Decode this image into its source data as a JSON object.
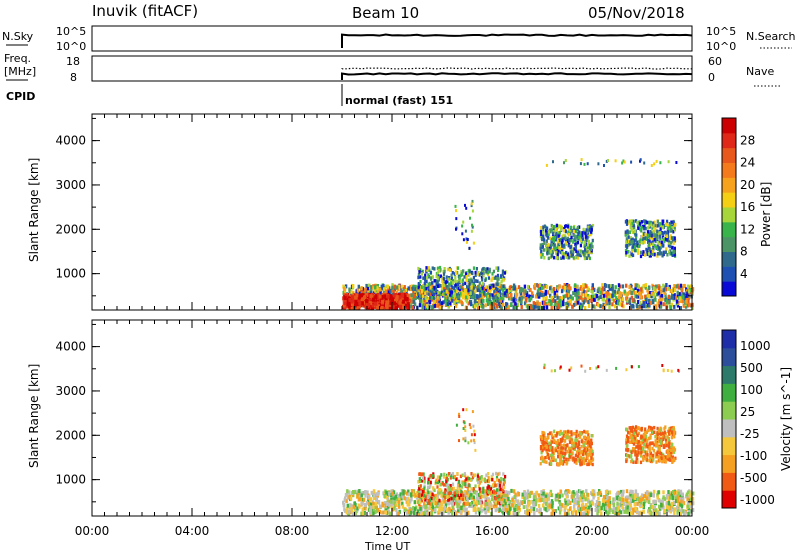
{
  "header": {
    "station": "Inuvik (fitACF)",
    "beam": "Beam 10",
    "date": "05/Nov/2018"
  },
  "aux_panels": {
    "nsky_label": "N.Sky",
    "nsearch_label": "N.Search",
    "nsky_ticks": [
      "10^5",
      "10^0"
    ],
    "freq_label_top": "Freq.",
    "freq_label_unit": "[MHz]",
    "freq_ticks": [
      "18",
      "8"
    ],
    "nave_ticks": [
      "60",
      "0"
    ],
    "nave_label": "Nave",
    "cpid_label": "CPID",
    "cpid_value": "normal (fast) 151",
    "start_time_hours": 10
  },
  "colors": {
    "power": [
      "#0a0ad6",
      "#1e50b4",
      "#2f6a8c",
      "#4a9466",
      "#39b44a",
      "#a6d63a",
      "#f5cf14",
      "#f7a21c",
      "#f47a1c",
      "#e8581c",
      "#e02818",
      "#cc0000"
    ],
    "velocity": [
      "#e00000",
      "#f05a14",
      "#f5a020",
      "#f5c83c",
      "#bfbfbf",
      "#8ccc50",
      "#3fb03f",
      "#2e7a6a",
      "#2d4e9a",
      "#1e2ea8"
    ]
  },
  "chart_data": [
    {
      "type": "heatmap",
      "panel": "power",
      "ylabel": "Slant Range [km]",
      "ylim": [
        180,
        4600
      ],
      "y_ticks": [
        "1000",
        "2000",
        "3000",
        "4000"
      ],
      "xlim": [
        0,
        24
      ],
      "colorbar_label": "Power [dB]",
      "colorbar_ticks": [
        "4",
        "8",
        "12",
        "16",
        "20",
        "24",
        "28"
      ],
      "colorbar_range": [
        0,
        32
      ],
      "regions": [
        {
          "t0": 10.0,
          "t1": 24.0,
          "r0": 180,
          "r1": 700,
          "kind": "band"
        },
        {
          "t0": 10.0,
          "t1": 12.6,
          "r0": 180,
          "r1": 480,
          "kind": "strong"
        },
        {
          "t0": 13.0,
          "t1": 16.5,
          "r0": 400,
          "r1": 1100,
          "kind": "patch"
        },
        {
          "t0": 17.9,
          "t1": 20.0,
          "r0": 1300,
          "r1": 2050,
          "kind": "patch"
        },
        {
          "t0": 21.3,
          "t1": 23.3,
          "r0": 1350,
          "r1": 2150,
          "kind": "patch"
        },
        {
          "t0": 14.5,
          "t1": 15.3,
          "r0": 1500,
          "r1": 2600,
          "kind": "sparse"
        },
        {
          "t0": 18.0,
          "t1": 23.5,
          "r0": 3400,
          "r1": 3550,
          "kind": "sparse"
        }
      ]
    },
    {
      "type": "heatmap",
      "panel": "velocity",
      "ylabel": "Slant Range [km]",
      "ylim": [
        180,
        4600
      ],
      "y_ticks": [
        "1000",
        "2000",
        "3000",
        "4000"
      ],
      "xlim": [
        0,
        24
      ],
      "xlabel": "Time UT",
      "x_ticks": [
        "00:00",
        "04:00",
        "08:00",
        "12:00",
        "16:00",
        "20:00",
        "00:00"
      ],
      "colorbar_label": "Velocity [m s^-1]",
      "colorbar_ticks": [
        "1000",
        "500",
        "100",
        "25",
        "-25",
        "-100",
        "-500",
        "-1000"
      ],
      "regions": [
        {
          "t0": 10.0,
          "t1": 24.0,
          "r0": 180,
          "r1": 700,
          "kind": "band"
        },
        {
          "t0": 13.0,
          "t1": 16.5,
          "r0": 400,
          "r1": 1100,
          "kind": "patch"
        },
        {
          "t0": 17.9,
          "t1": 20.0,
          "r0": 1300,
          "r1": 2050,
          "kind": "patch"
        },
        {
          "t0": 21.3,
          "t1": 23.3,
          "r0": 1350,
          "r1": 2150,
          "kind": "patch"
        },
        {
          "t0": 14.5,
          "t1": 15.3,
          "r0": 1500,
          "r1": 2600,
          "kind": "sparse"
        },
        {
          "t0": 18.0,
          "t1": 23.5,
          "r0": 3400,
          "r1": 3550,
          "kind": "sparse"
        }
      ]
    }
  ]
}
